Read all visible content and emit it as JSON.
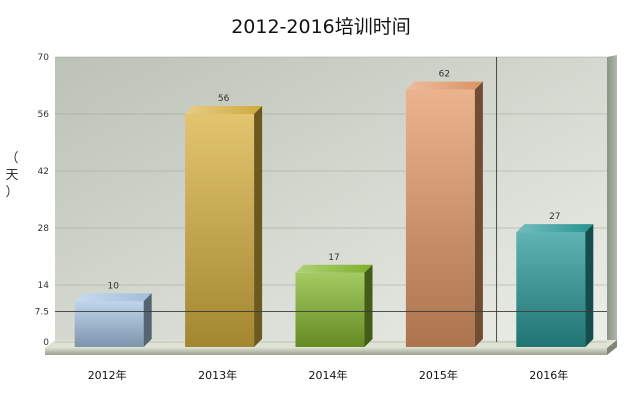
{
  "chart_data": {
    "type": "bar",
    "title": "2012-2016培训时间",
    "ylabel": "（天）",
    "xlabel": "",
    "categories": [
      "2012年",
      "2013年",
      "2014年",
      "2015年",
      "2016年"
    ],
    "values": [
      10,
      56,
      17,
      62,
      27
    ],
    "data_labels": [
      "10",
      "56",
      "17",
      "62",
      "27"
    ],
    "ylim": [
      0,
      70
    ],
    "y_ticks": [
      0,
      7.5,
      14,
      28,
      42,
      56,
      70
    ],
    "y_tick_labels": [
      "0",
      "7.5",
      "14",
      "28",
      "42",
      "56",
      "70"
    ],
    "reference_line_y": 7.5,
    "vertical_marker_between": [
      "2015年",
      "2016年"
    ],
    "bar_colors": [
      "#a9c7e6",
      "#d9b240",
      "#86b82e",
      "#e49a68",
      "#2a9a9a"
    ],
    "grid": true,
    "legend": "none"
  }
}
